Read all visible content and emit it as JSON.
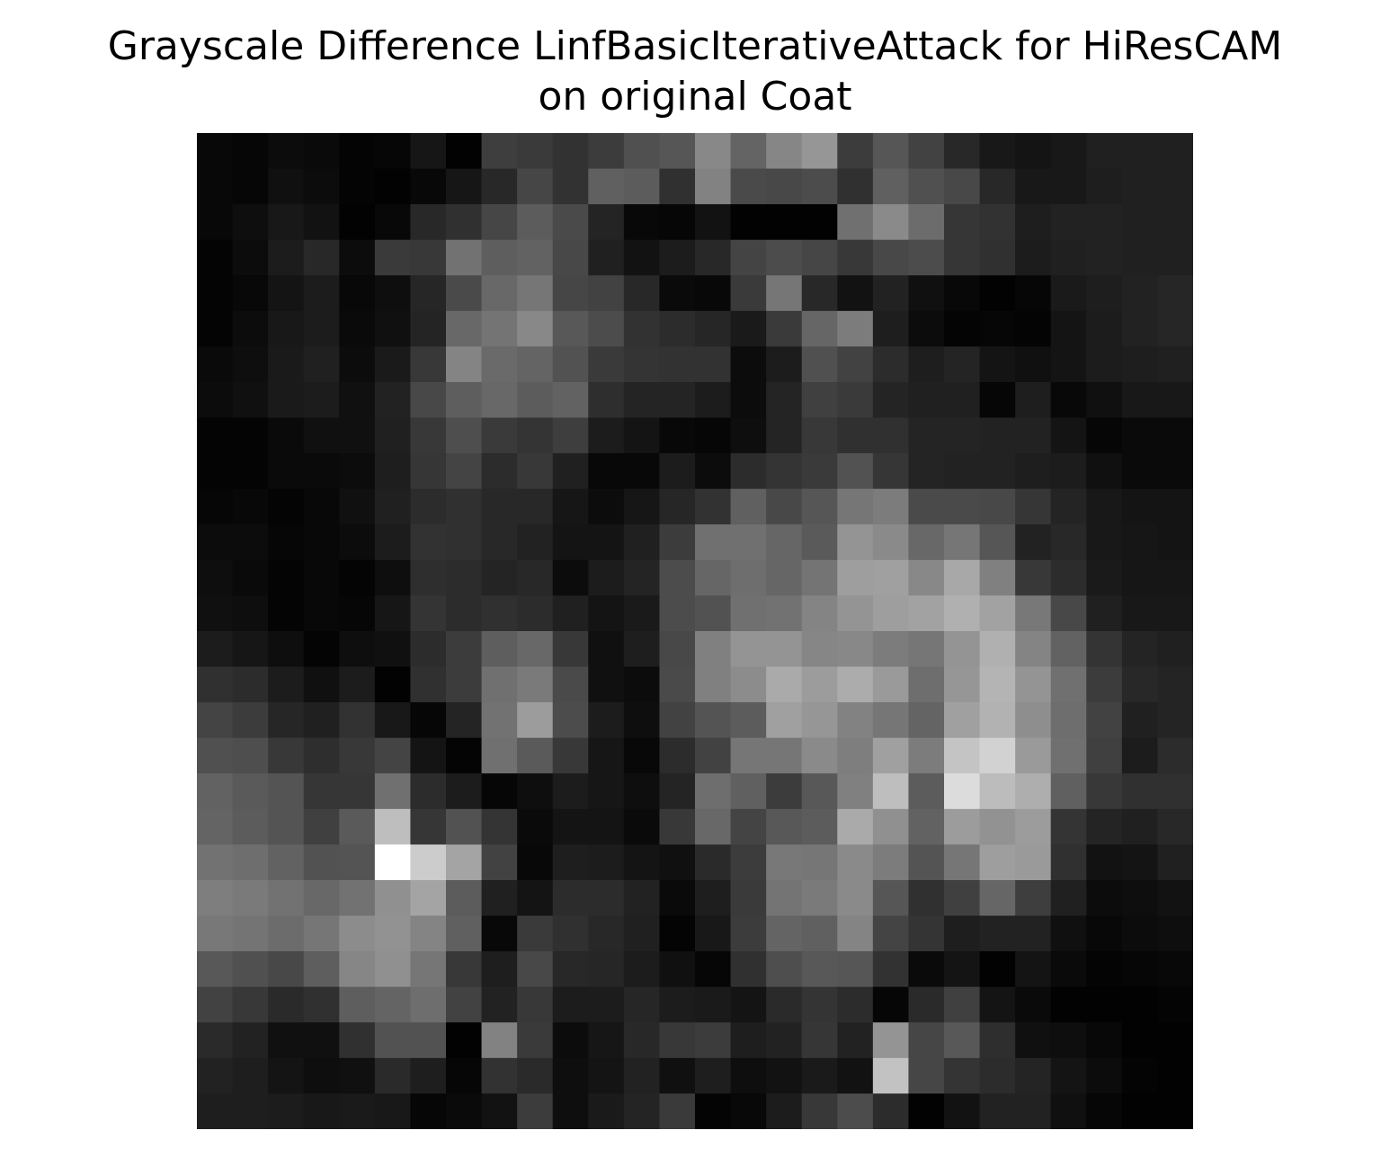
{
  "chart_data": {
    "type": "heatmap",
    "title_lines": [
      "Grayscale Difference LinfBasicIterativeAttack for HiResCAM",
      "on original Coat"
    ],
    "colormap": "gray",
    "axes_visible": false,
    "grid": false,
    "legend": "none",
    "value_range": [
      0,
      255
    ],
    "rows": 28,
    "cols": 28,
    "values": [
      [
        8,
        6,
        12,
        10,
        4,
        6,
        22,
        2,
        62,
        58,
        50,
        60,
        80,
        86,
        136,
        100,
        134,
        150,
        60,
        86,
        66,
        40,
        24,
        20,
        24,
        32,
        32,
        32
      ],
      [
        8,
        6,
        16,
        12,
        4,
        2,
        8,
        22,
        40,
        70,
        50,
        96,
        92,
        48,
        130,
        74,
        72,
        76,
        48,
        96,
        80,
        72,
        40,
        24,
        24,
        30,
        32,
        32
      ],
      [
        8,
        14,
        24,
        18,
        2,
        8,
        40,
        48,
        70,
        92,
        74,
        36,
        8,
        6,
        18,
        2,
        2,
        2,
        112,
        138,
        108,
        54,
        50,
        30,
        34,
        34,
        32,
        32
      ],
      [
        4,
        12,
        28,
        40,
        12,
        58,
        56,
        114,
        94,
        98,
        72,
        32,
        18,
        28,
        40,
        68,
        76,
        70,
        56,
        72,
        76,
        54,
        48,
        28,
        32,
        34,
        32,
        32
      ],
      [
        4,
        8,
        20,
        28,
        8,
        14,
        38,
        74,
        104,
        118,
        70,
        66,
        40,
        10,
        8,
        58,
        118,
        40,
        18,
        34,
        16,
        8,
        2,
        6,
        26,
        30,
        34,
        38
      ],
      [
        4,
        12,
        24,
        28,
        10,
        16,
        36,
        104,
        116,
        136,
        88,
        76,
        50,
        44,
        38,
        26,
        58,
        102,
        124,
        30,
        12,
        4,
        6,
        4,
        20,
        28,
        34,
        38
      ],
      [
        10,
        14,
        26,
        32,
        12,
        26,
        56,
        132,
        106,
        100,
        82,
        58,
        52,
        50,
        50,
        12,
        28,
        80,
        66,
        44,
        30,
        36,
        20,
        16,
        20,
        28,
        30,
        32
      ],
      [
        12,
        16,
        26,
        28,
        16,
        34,
        72,
        94,
        104,
        92,
        98,
        46,
        36,
        36,
        28,
        12,
        36,
        64,
        58,
        36,
        32,
        32,
        6,
        30,
        8,
        16,
        24,
        24
      ],
      [
        4,
        4,
        10,
        16,
        16,
        32,
        56,
        78,
        58,
        52,
        62,
        28,
        20,
        8,
        6,
        14,
        36,
        56,
        48,
        48,
        36,
        36,
        34,
        34,
        20,
        6,
        10,
        10
      ],
      [
        4,
        4,
        10,
        10,
        12,
        30,
        54,
        68,
        44,
        56,
        32,
        8,
        8,
        28,
        12,
        44,
        52,
        58,
        82,
        54,
        36,
        34,
        34,
        30,
        28,
        16,
        10,
        10
      ],
      [
        6,
        8,
        4,
        8,
        16,
        32,
        44,
        48,
        40,
        40,
        22,
        12,
        22,
        38,
        50,
        96,
        72,
        86,
        118,
        124,
        74,
        74,
        72,
        54,
        36,
        24,
        20,
        20
      ],
      [
        12,
        12,
        6,
        8,
        12,
        28,
        50,
        48,
        40,
        34,
        20,
        20,
        32,
        60,
        112,
        112,
        102,
        90,
        148,
        138,
        104,
        118,
        86,
        34,
        40,
        24,
        22,
        20
      ],
      [
        14,
        10,
        4,
        8,
        4,
        14,
        46,
        44,
        36,
        40,
        12,
        28,
        36,
        76,
        102,
        110,
        102,
        116,
        158,
        160,
        136,
        168,
        128,
        56,
        44,
        26,
        22,
        22
      ],
      [
        16,
        14,
        4,
        8,
        6,
        22,
        52,
        44,
        48,
        44,
        32,
        20,
        26,
        76,
        82,
        112,
        114,
        132,
        148,
        158,
        162,
        176,
        162,
        120,
        72,
        32,
        24,
        24
      ],
      [
        28,
        22,
        14,
        4,
        14,
        16,
        44,
        60,
        94,
        104,
        56,
        16,
        30,
        72,
        128,
        148,
        148,
        134,
        136,
        124,
        118,
        148,
        176,
        132,
        98,
        52,
        36,
        32
      ],
      [
        48,
        44,
        28,
        16,
        28,
        2,
        48,
        60,
        112,
        122,
        74,
        16,
        12,
        74,
        128,
        140,
        170,
        156,
        172,
        154,
        110,
        150,
        180,
        148,
        112,
        60,
        40,
        36
      ],
      [
        68,
        60,
        38,
        32,
        50,
        24,
        6,
        36,
        114,
        156,
        76,
        28,
        14,
        66,
        84,
        92,
        160,
        150,
        130,
        118,
        100,
        160,
        178,
        142,
        110,
        66,
        32,
        36
      ],
      [
        80,
        78,
        56,
        46,
        56,
        68,
        20,
        4,
        112,
        90,
        56,
        22,
        8,
        44,
        66,
        118,
        118,
        138,
        126,
        160,
        124,
        196,
        210,
        154,
        112,
        64,
        28,
        44
      ],
      [
        98,
        90,
        84,
        54,
        54,
        112,
        44,
        28,
        6,
        14,
        28,
        22,
        14,
        36,
        110,
        96,
        60,
        88,
        128,
        190,
        92,
        220,
        188,
        174,
        96,
        56,
        48,
        48
      ],
      [
        100,
        92,
        84,
        64,
        90,
        190,
        54,
        82,
        52,
        10,
        20,
        20,
        10,
        56,
        104,
        68,
        88,
        92,
        170,
        144,
        98,
        156,
        146,
        156,
        52,
        36,
        32,
        40
      ],
      [
        114,
        110,
        98,
        82,
        84,
        255,
        204,
        164,
        66,
        8,
        30,
        28,
        20,
        16,
        42,
        60,
        120,
        118,
        138,
        124,
        84,
        118,
        158,
        154,
        48,
        18,
        20,
        32
      ],
      [
        126,
        122,
        114,
        104,
        114,
        144,
        164,
        92,
        32,
        20,
        44,
        44,
        34,
        10,
        30,
        58,
        116,
        122,
        138,
        86,
        48,
        64,
        102,
        62,
        32,
        12,
        14,
        18
      ],
      [
        120,
        116,
        108,
        118,
        140,
        146,
        132,
        96,
        8,
        58,
        48,
        40,
        32,
        4,
        24,
        60,
        100,
        96,
        132,
        68,
        52,
        30,
        34,
        34,
        16,
        8,
        12,
        14
      ],
      [
        88,
        80,
        72,
        94,
        134,
        144,
        118,
        56,
        30,
        72,
        40,
        38,
        28,
        16,
        6,
        48,
        78,
        88,
        86,
        50,
        10,
        20,
        2,
        20,
        10,
        4,
        6,
        8
      ],
      [
        66,
        56,
        42,
        48,
        94,
        100,
        110,
        66,
        34,
        56,
        28,
        28,
        38,
        28,
        26,
        20,
        42,
        52,
        44,
        6,
        42,
        64,
        20,
        10,
        2,
        2,
        2,
        4
      ],
      [
        42,
        34,
        16,
        16,
        48,
        82,
        82,
        2,
        130,
        58,
        12,
        22,
        40,
        56,
        60,
        30,
        34,
        54,
        34,
        148,
        70,
        88,
        46,
        16,
        14,
        8,
        2,
        2
      ],
      [
        34,
        30,
        20,
        14,
        16,
        42,
        30,
        6,
        50,
        42,
        14,
        20,
        34,
        16,
        30,
        14,
        18,
        26,
        18,
        194,
        70,
        52,
        44,
        36,
        20,
        12,
        4,
        2
      ],
      [
        30,
        30,
        28,
        24,
        26,
        24,
        6,
        10,
        18,
        60,
        14,
        26,
        36,
        58,
        4,
        8,
        28,
        56,
        76,
        44,
        2,
        18,
        34,
        34,
        16,
        6,
        2,
        2
      ]
    ]
  }
}
